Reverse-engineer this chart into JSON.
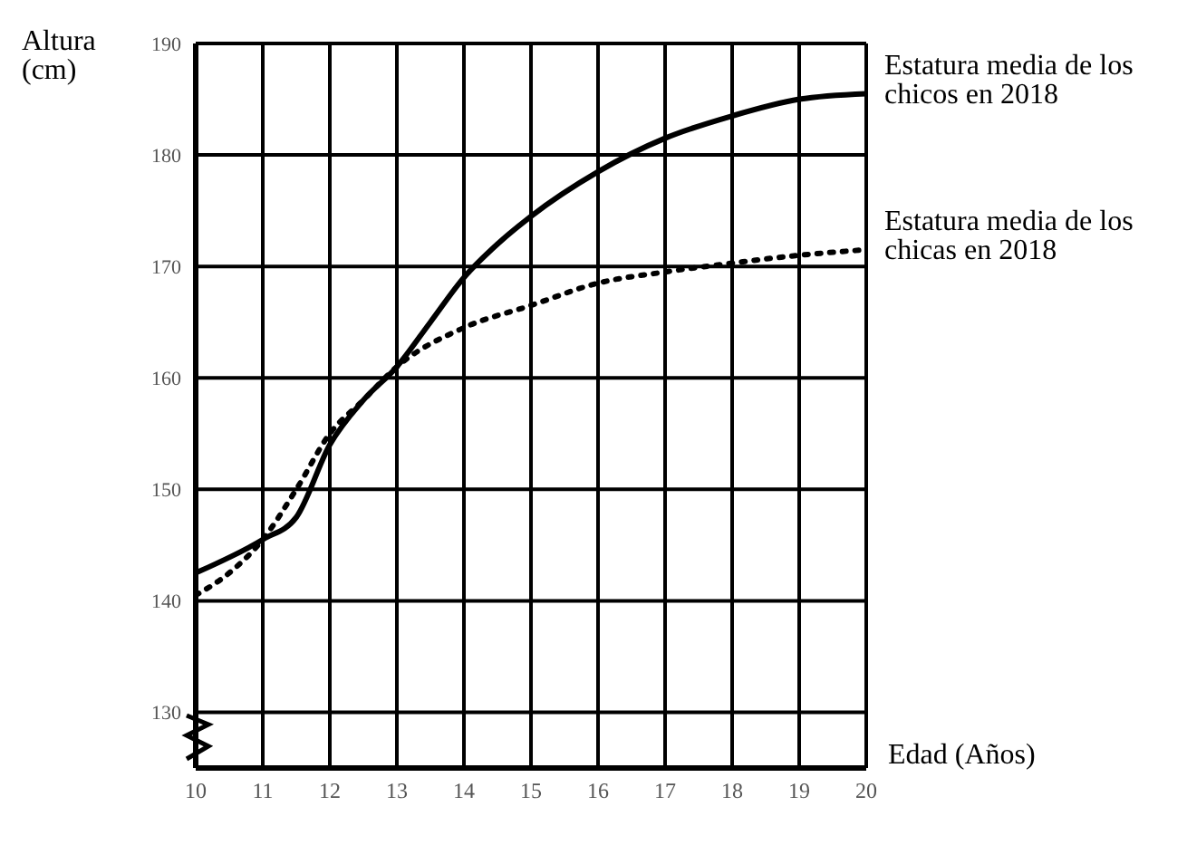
{
  "chart_data": {
    "type": "line",
    "xlabel": "Edad (Años)",
    "ylabel": "Altura (cm)",
    "xlim": [
      10,
      20
    ],
    "xticks": [
      10,
      11,
      12,
      13,
      14,
      15,
      16,
      17,
      18,
      19,
      20
    ],
    "ylim": [
      125,
      190
    ],
    "yticks": [
      130,
      140,
      150,
      160,
      170,
      180,
      190
    ],
    "grid": true,
    "legend": false,
    "marker": "none",
    "series": [
      {
        "name": "Estatura media de los chicos en 2018",
        "color": "#000000",
        "line_style": "solid",
        "x": [
          10,
          11,
          11.5,
          12,
          12.5,
          13,
          13.5,
          14,
          14.5,
          15,
          16,
          17,
          18,
          19,
          20
        ],
        "values": [
          142.5,
          145.5,
          147.5,
          154,
          158,
          161,
          165,
          169,
          172,
          174.5,
          178.5,
          181.5,
          183.5,
          185,
          185.5
        ]
      },
      {
        "name": "Estatura media de los chicas en 2018",
        "color": "#000000",
        "line_style": "dotted",
        "x": [
          10,
          10.5,
          11,
          11.5,
          12,
          12.5,
          13,
          14,
          15,
          16,
          17,
          18,
          19,
          20
        ],
        "values": [
          140.5,
          142.5,
          145.5,
          150,
          155,
          158,
          161,
          164.5,
          166.5,
          168.5,
          169.5,
          170.3,
          171,
          171.5
        ]
      }
    ]
  }
}
